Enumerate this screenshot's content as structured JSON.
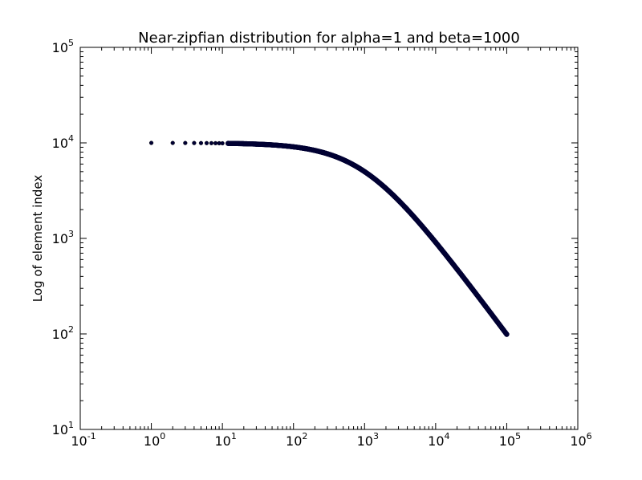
{
  "chart_data": {
    "type": "scatter",
    "title": "Near-zipfian distribution for alpha=1 and beta=1000",
    "xlabel": "",
    "ylabel": "Log of element index",
    "x_scale": "log",
    "y_scale": "log",
    "xlim": [
      0.1,
      1000000
    ],
    "ylim": [
      10,
      100000
    ],
    "grid": false,
    "legend": "none",
    "x_ticks": [
      {
        "base": "10",
        "exp": "-1",
        "value": 0.1
      },
      {
        "base": "10",
        "exp": "0",
        "value": 1
      },
      {
        "base": "10",
        "exp": "1",
        "value": 10
      },
      {
        "base": "10",
        "exp": "2",
        "value": 100
      },
      {
        "base": "10",
        "exp": "3",
        "value": 1000
      },
      {
        "base": "10",
        "exp": "4",
        "value": 10000
      },
      {
        "base": "10",
        "exp": "5",
        "value": 100000
      },
      {
        "base": "10",
        "exp": "6",
        "value": 1000000
      }
    ],
    "y_ticks": [
      {
        "base": "10",
        "exp": "1",
        "value": 10
      },
      {
        "base": "10",
        "exp": "2",
        "value": 100
      },
      {
        "base": "10",
        "exp": "3",
        "value": 1000
      },
      {
        "base": "10",
        "exp": "4",
        "value": 10000
      },
      {
        "base": "10",
        "exp": "5",
        "value": 100000
      }
    ],
    "series": [
      {
        "marker_color": "#000033",
        "formula": "y = 10000000 / (x + 1000)^1",
        "x_range": [
          1,
          100000
        ],
        "points": [
          {
            "x": 1,
            "y": 9990
          },
          {
            "x": 2,
            "y": 9980
          },
          {
            "x": 3,
            "y": 9970
          },
          {
            "x": 4,
            "y": 9960
          },
          {
            "x": 5,
            "y": 9950
          },
          {
            "x": 6,
            "y": 9940
          },
          {
            "x": 7,
            "y": 9930
          },
          {
            "x": 8,
            "y": 9921
          },
          {
            "x": 9,
            "y": 9911
          },
          {
            "x": 10,
            "y": 9901
          },
          {
            "x": 12,
            "y": 9881
          },
          {
            "x": 15,
            "y": 9852
          },
          {
            "x": 20,
            "y": 9804
          },
          {
            "x": 30,
            "y": 9709
          },
          {
            "x": 50,
            "y": 9524
          },
          {
            "x": 100,
            "y": 9091
          },
          {
            "x": 200,
            "y": 8333
          },
          {
            "x": 300,
            "y": 7692
          },
          {
            "x": 500,
            "y": 6667
          },
          {
            "x": 1000,
            "y": 5000
          },
          {
            "x": 2000,
            "y": 3333
          },
          {
            "x": 3000,
            "y": 2500
          },
          {
            "x": 5000,
            "y": 1667
          },
          {
            "x": 10000,
            "y": 909
          },
          {
            "x": 20000,
            "y": 476
          },
          {
            "x": 50000,
            "y": 196
          },
          {
            "x": 100000,
            "y": 99
          }
        ]
      }
    ]
  }
}
